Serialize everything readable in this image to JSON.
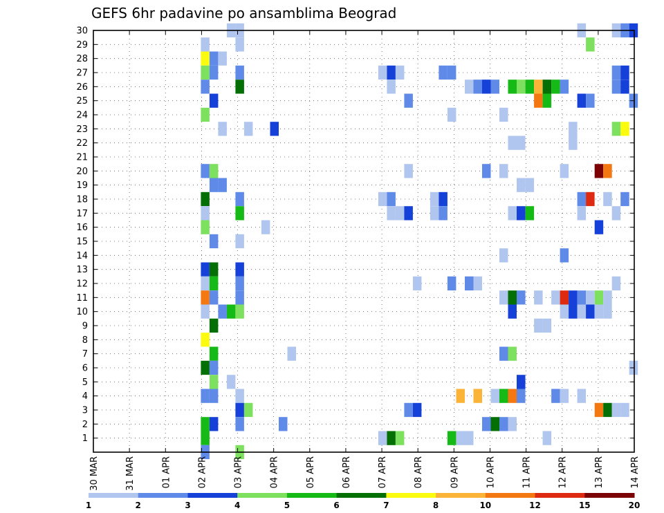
{
  "chart_data": {
    "type": "heatmap",
    "title": "GEFS 6hr padavine po ansamblima Beograd",
    "xlabel": "",
    "ylabel": "",
    "x_ticks": [
      "30 MAR",
      "31 MAR",
      "01 APR",
      "02 APR",
      "03 APR",
      "04 APR",
      "05 APR",
      "06 APR",
      "07 APR",
      "08 APR",
      "09 APR",
      "10 APR",
      "11 APR",
      "12 APR",
      "13 APR",
      "14 APR"
    ],
    "xlim": [
      0,
      15
    ],
    "y_ticks": [
      1,
      2,
      3,
      4,
      5,
      6,
      7,
      8,
      9,
      10,
      11,
      12,
      13,
      14,
      15,
      16,
      17,
      18,
      19,
      20,
      21,
      22,
      23,
      24,
      25,
      26,
      27,
      28,
      29,
      30
    ],
    "ylim": [
      0,
      30
    ],
    "grid": true,
    "colorbar": {
      "levels": [
        "1",
        "2",
        "3",
        "4",
        "5",
        "6",
        "7",
        "8",
        "10",
        "12",
        "15",
        "20"
      ],
      "colors": [
        "#b0c6ee",
        "#5f8ae8",
        "#1541d8",
        "#7de05e",
        "#16ba16",
        "#046f04",
        "#fbfb10",
        "#fbb438",
        "#f47812",
        "#dd2a10",
        "#7b0303"
      ]
    },
    "cells": [
      [
        2.98,
        29,
        0
      ],
      [
        2.98,
        28,
        6
      ],
      [
        3.22,
        28,
        1
      ],
      [
        3.46,
        28,
        0
      ],
      [
        2.98,
        27,
        3
      ],
      [
        3.22,
        27,
        1
      ],
      [
        3.94,
        27,
        1
      ],
      [
        2.98,
        26,
        1
      ],
      [
        3.94,
        26,
        5
      ],
      [
        3.22,
        25,
        2
      ],
      [
        2.98,
        24,
        3
      ],
      [
        3.46,
        23,
        0
      ],
      [
        4.18,
        23,
        0
      ],
      [
        4.9,
        23,
        2
      ],
      [
        2.98,
        20,
        1
      ],
      [
        3.22,
        20,
        3
      ],
      [
        3.22,
        19,
        1
      ],
      [
        3.46,
        19,
        1
      ],
      [
        2.98,
        18,
        5
      ],
      [
        3.94,
        18,
        1
      ],
      [
        2.98,
        17,
        0
      ],
      [
        3.94,
        17,
        4
      ],
      [
        4.66,
        16,
        0
      ],
      [
        2.98,
        16,
        3
      ],
      [
        3.22,
        15,
        1
      ],
      [
        3.94,
        15,
        0
      ],
      [
        2.98,
        13,
        2
      ],
      [
        3.22,
        13,
        5
      ],
      [
        3.94,
        13,
        2
      ],
      [
        2.98,
        12,
        0
      ],
      [
        3.22,
        12,
        4
      ],
      [
        3.94,
        12,
        1
      ],
      [
        2.98,
        11,
        8
      ],
      [
        3.22,
        11,
        1
      ],
      [
        3.94,
        11,
        1
      ],
      [
        2.98,
        10,
        0
      ],
      [
        3.46,
        10,
        1
      ],
      [
        3.7,
        10,
        4
      ],
      [
        3.94,
        10,
        3
      ],
      [
        3.22,
        9,
        5
      ],
      [
        2.98,
        8,
        6
      ],
      [
        3.22,
        7,
        4
      ],
      [
        5.38,
        7,
        0
      ],
      [
        2.98,
        6,
        5
      ],
      [
        3.22,
        6,
        1
      ],
      [
        3.22,
        5,
        3
      ],
      [
        3.7,
        5,
        0
      ],
      [
        2.98,
        4,
        1
      ],
      [
        3.22,
        4,
        1
      ],
      [
        3.94,
        4,
        0
      ],
      [
        3.94,
        3,
        2
      ],
      [
        4.18,
        3,
        3
      ],
      [
        2.98,
        2,
        4
      ],
      [
        3.22,
        2,
        2
      ],
      [
        3.94,
        2,
        1
      ],
      [
        5.14,
        2,
        1
      ],
      [
        2.98,
        1,
        4
      ],
      [
        2.98,
        0,
        1
      ],
      [
        3.94,
        0,
        3
      ],
      [
        3.7,
        30,
        0
      ],
      [
        3.94,
        30,
        0
      ],
      [
        3.94,
        29,
        0
      ],
      [
        7.9,
        27,
        0
      ],
      [
        8.14,
        27,
        2
      ],
      [
        8.38,
        27,
        0
      ],
      [
        9.58,
        27,
        1
      ],
      [
        9.82,
        27,
        1
      ],
      [
        8.14,
        26,
        0
      ],
      [
        8.62,
        25,
        1
      ],
      [
        9.82,
        24,
        0
      ],
      [
        8.62,
        20,
        0
      ],
      [
        7.9,
        18,
        0
      ],
      [
        8.14,
        18,
        1
      ],
      [
        9.34,
        18,
        0
      ],
      [
        9.58,
        18,
        2
      ],
      [
        8.14,
        17,
        0
      ],
      [
        8.38,
        17,
        0
      ],
      [
        8.62,
        17,
        2
      ],
      [
        9.34,
        17,
        0
      ],
      [
        9.58,
        17,
        1
      ],
      [
        8.86,
        12,
        0
      ],
      [
        9.82,
        12,
        1
      ],
      [
        10.3,
        12,
        1
      ],
      [
        10.54,
        12,
        0
      ],
      [
        7.9,
        1,
        0
      ],
      [
        8.14,
        1,
        5
      ],
      [
        8.38,
        1,
        3
      ],
      [
        8.62,
        3,
        1
      ],
      [
        8.86,
        3,
        2
      ],
      [
        9.82,
        1,
        4
      ],
      [
        10.06,
        1,
        0
      ],
      [
        10.3,
        1,
        0
      ],
      [
        10.06,
        4,
        7
      ],
      [
        10.3,
        26,
        0
      ],
      [
        10.54,
        26,
        1
      ],
      [
        10.78,
        26,
        2
      ],
      [
        11.02,
        26,
        1
      ],
      [
        11.5,
        26,
        4
      ],
      [
        11.74,
        26,
        3
      ],
      [
        11.98,
        26,
        4
      ],
      [
        12.22,
        26,
        7
      ],
      [
        12.46,
        26,
        5
      ],
      [
        12.7,
        26,
        4
      ],
      [
        12.94,
        26,
        1
      ],
      [
        12.22,
        25,
        8
      ],
      [
        12.46,
        25,
        4
      ],
      [
        13.42,
        25,
        2
      ],
      [
        13.66,
        25,
        1
      ],
      [
        14.86,
        25,
        1
      ],
      [
        11.26,
        24,
        0
      ],
      [
        13.18,
        23,
        0
      ],
      [
        13.18,
        22,
        0
      ],
      [
        11.5,
        22,
        0
      ],
      [
        11.74,
        22,
        0
      ],
      [
        10.78,
        20,
        1
      ],
      [
        11.26,
        20,
        0
      ],
      [
        12.94,
        20,
        0
      ],
      [
        13.9,
        20,
        10
      ],
      [
        14.14,
        20,
        8
      ],
      [
        11.74,
        19,
        0
      ],
      [
        11.98,
        19,
        0
      ],
      [
        13.42,
        18,
        1
      ],
      [
        13.66,
        18,
        9
      ],
      [
        14.14,
        18,
        0
      ],
      [
        14.62,
        18,
        1
      ],
      [
        11.5,
        17,
        0
      ],
      [
        11.74,
        17,
        2
      ],
      [
        11.98,
        17,
        4
      ],
      [
        13.42,
        17,
        0
      ],
      [
        14.38,
        17,
        0
      ],
      [
        13.9,
        16,
        2
      ],
      [
        11.26,
        14,
        0
      ],
      [
        12.94,
        14,
        1
      ],
      [
        11.26,
        11,
        0
      ],
      [
        11.5,
        11,
        5
      ],
      [
        11.74,
        11,
        1
      ],
      [
        12.22,
        11,
        0
      ],
      [
        12.7,
        11,
        0
      ],
      [
        12.94,
        11,
        9
      ],
      [
        13.18,
        11,
        2
      ],
      [
        13.42,
        11,
        1
      ],
      [
        13.66,
        11,
        0
      ],
      [
        13.9,
        11,
        3
      ],
      [
        14.14,
        11,
        0
      ],
      [
        14.38,
        12,
        0
      ],
      [
        12.94,
        10,
        0
      ],
      [
        13.18,
        10,
        2
      ],
      [
        13.42,
        10,
        0
      ],
      [
        13.66,
        10,
        2
      ],
      [
        13.9,
        10,
        0
      ],
      [
        14.14,
        10,
        0
      ],
      [
        11.5,
        10,
        2
      ],
      [
        12.22,
        9,
        0
      ],
      [
        12.46,
        9,
        0
      ],
      [
        11.26,
        7,
        1
      ],
      [
        11.5,
        7,
        3
      ],
      [
        14.86,
        6,
        0
      ],
      [
        11.74,
        5,
        2
      ],
      [
        10.54,
        4,
        7
      ],
      [
        11.02,
        4,
        0
      ],
      [
        11.26,
        4,
        4
      ],
      [
        11.5,
        4,
        8
      ],
      [
        11.74,
        4,
        1
      ],
      [
        12.7,
        4,
        1
      ],
      [
        12.94,
        4,
        0
      ],
      [
        13.42,
        4,
        0
      ],
      [
        13.9,
        3,
        8
      ],
      [
        14.14,
        3,
        5
      ],
      [
        14.38,
        3,
        0
      ],
      [
        14.62,
        3,
        0
      ],
      [
        10.78,
        2,
        1
      ],
      [
        11.02,
        2,
        5
      ],
      [
        11.26,
        2,
        1
      ],
      [
        11.5,
        2,
        0
      ],
      [
        12.46,
        1,
        0
      ],
      [
        14.38,
        27,
        1
      ],
      [
        14.62,
        27,
        2
      ],
      [
        14.38,
        26,
        1
      ],
      [
        14.62,
        26,
        2
      ],
      [
        14.38,
        23,
        3
      ],
      [
        14.62,
        23,
        6
      ],
      [
        13.42,
        30,
        0
      ],
      [
        14.38,
        30,
        0
      ],
      [
        14.62,
        30,
        1
      ],
      [
        14.86,
        30,
        2
      ],
      [
        13.66,
        29,
        3
      ]
    ]
  }
}
